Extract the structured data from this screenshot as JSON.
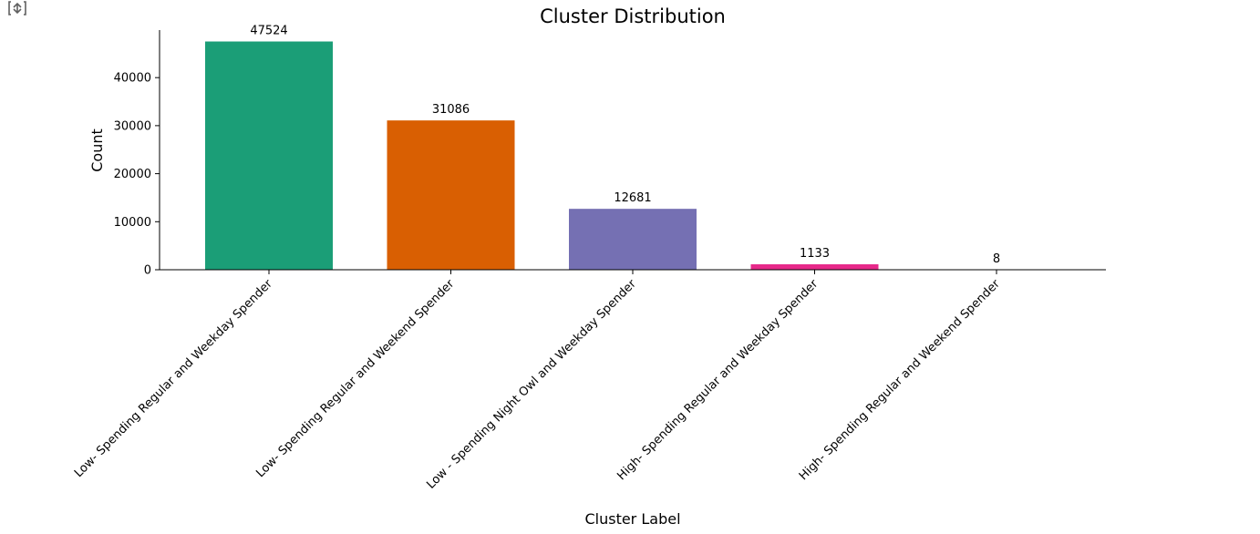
{
  "icons": {
    "corner": "expand-output-icon"
  },
  "chart_data": {
    "type": "bar",
    "title": "Cluster Distribution",
    "xlabel": "Cluster Label",
    "ylabel": "Count",
    "categories": [
      "Low- Spending  Regular and Weekday Spender",
      "Low- Spending Regular and Weekend Spender",
      "Low - Spending Night Owl and Weekday Spender",
      "High- Spending Regular and Weekday Spender",
      "High- Spending Regular and Weekend Spender"
    ],
    "values": [
      47524,
      31086,
      12681,
      1133,
      8
    ],
    "data_labels": [
      "47524",
      "31086",
      "12681",
      "1133",
      "8"
    ],
    "colors": [
      "#1b9e77",
      "#d95f02",
      "#7570b3",
      "#e7298a",
      "#66a61e"
    ],
    "yticks": [
      0,
      10000,
      20000,
      30000,
      40000
    ],
    "ytick_labels": [
      "0",
      "10000",
      "20000",
      "30000",
      "40000"
    ],
    "ylim": [
      0,
      49900
    ],
    "grid": false,
    "legend": "none"
  }
}
